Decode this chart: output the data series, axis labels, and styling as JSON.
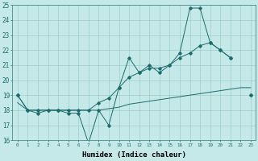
{
  "xlabel": "Humidex (Indice chaleur)",
  "bg_color": "#c5e8e8",
  "grid_color": "#9ecece",
  "line_color": "#1e6b6b",
  "x_values": [
    0,
    1,
    2,
    3,
    4,
    5,
    6,
    7,
    8,
    9,
    10,
    11,
    12,
    13,
    14,
    15,
    16,
    17,
    18,
    19,
    20,
    21,
    22,
    23
  ],
  "spiky_y": [
    19.0,
    18.0,
    17.8,
    18.0,
    18.0,
    17.8,
    17.8,
    15.8,
    18.0,
    17.0,
    19.5,
    21.5,
    20.5,
    21.0,
    20.5,
    21.0,
    21.8,
    24.8,
    24.8,
    22.5,
    22.0,
    21.5,
    null,
    19.0
  ],
  "smooth_y": [
    19.0,
    18.0,
    18.0,
    18.0,
    18.0,
    18.0,
    18.0,
    18.0,
    18.5,
    18.8,
    19.5,
    20.2,
    20.5,
    20.8,
    20.8,
    21.0,
    21.5,
    21.8,
    22.3,
    22.5,
    22.0,
    21.5,
    null,
    19.0
  ],
  "baseline_y": [
    18.5,
    18.0,
    18.0,
    18.0,
    18.0,
    18.0,
    18.0,
    18.0,
    18.0,
    18.1,
    18.2,
    18.4,
    18.5,
    18.6,
    18.7,
    18.8,
    18.9,
    19.0,
    19.1,
    19.2,
    19.3,
    19.4,
    19.5,
    19.5
  ],
  "ylim": [
    16,
    25
  ],
  "xlim": [
    -0.5,
    23.5
  ],
  "yticks": [
    16,
    17,
    18,
    19,
    20,
    21,
    22,
    23,
    24,
    25
  ],
  "xticks": [
    0,
    1,
    2,
    3,
    4,
    5,
    6,
    7,
    8,
    9,
    10,
    11,
    12,
    13,
    14,
    15,
    16,
    17,
    18,
    19,
    20,
    21,
    22,
    23
  ]
}
